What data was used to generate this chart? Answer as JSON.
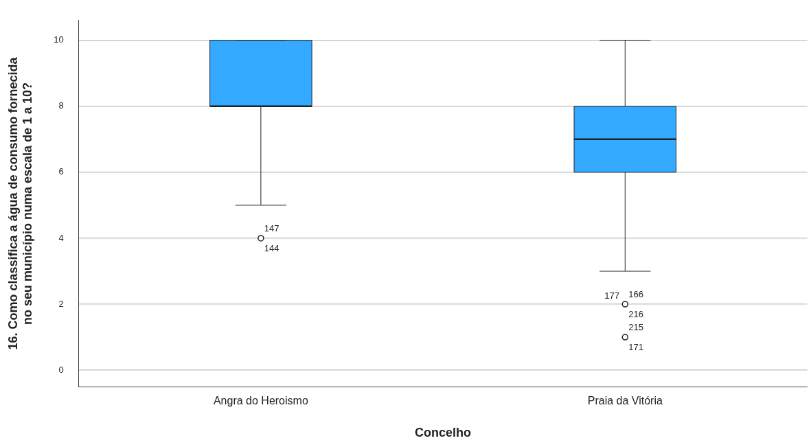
{
  "chart_data": {
    "type": "box",
    "xlabel": "Concelho",
    "ylabel": "16. Como classifica a água de consumo fornecida no seu município numa escala de 1 a 10?",
    "categories": [
      "Angra do Heroismo",
      "Praia da Vitória"
    ],
    "color": "#33aaff",
    "boxes": [
      {
        "low": 5,
        "q1": 8,
        "median": 8,
        "q3": 10,
        "high": 10
      },
      {
        "low": 3,
        "q1": 6,
        "median": 7,
        "q3": 8,
        "high": 10
      }
    ],
    "series": [
      {
        "type": "scatter",
        "x": [
          "Angra do Heroismo",
          "Praia da Vitória",
          "Praia da Vitória"
        ],
        "values": [
          4,
          2,
          1
        ],
        "color": "#222222"
      }
    ],
    "marker": "circle",
    "ylim": [
      -0.5,
      10.6
    ],
    "yticks": [
      0,
      2,
      4,
      6,
      8,
      10
    ],
    "grid": "y",
    "legend": false,
    "annotations": [
      {
        "text": "147",
        "x": "Angra do Heroismo",
        "y": 4
      },
      {
        "text": "144",
        "x": "Angra do Heroismo",
        "y": 4
      },
      {
        "text": "166",
        "x": "Praia da Vitória",
        "y": 2
      },
      {
        "text": "216",
        "x": "Praia da Vitória",
        "y": 2
      },
      {
        "text": "177",
        "x": "Praia da Vitória",
        "y": 2
      },
      {
        "text": "215",
        "x": "Praia da Vitória",
        "y": 1
      },
      {
        "text": "171",
        "x": "Praia da Vitória",
        "y": 1
      }
    ]
  }
}
